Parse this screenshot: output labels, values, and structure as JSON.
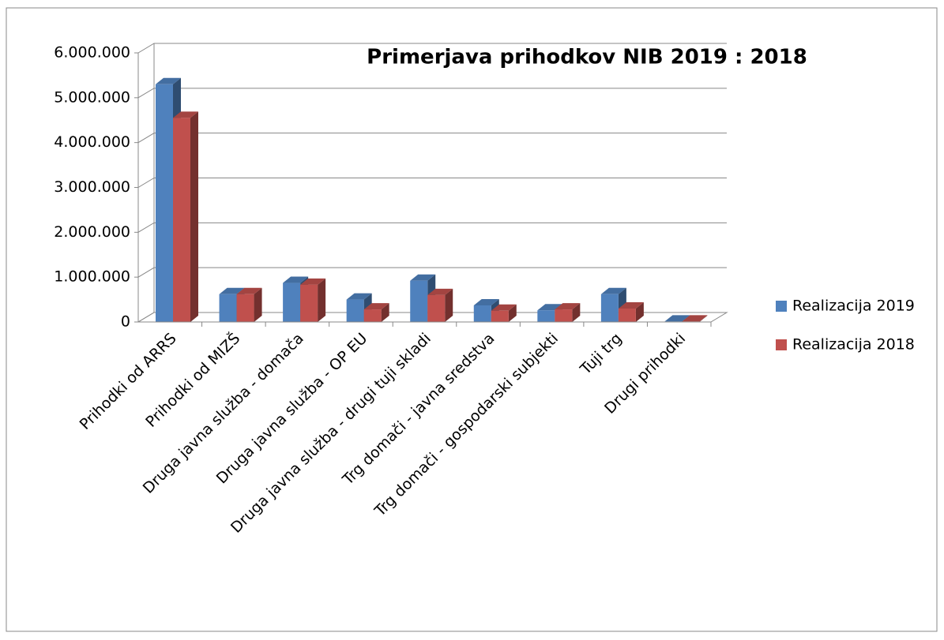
{
  "chart_data": {
    "type": "bar3d",
    "title": "Primerjava prihodkov NIB 2019 : 2018",
    "categories": [
      "Prihodki od ARRS",
      "Prihodki od MIZŠ",
      "Druga javna služba - domača",
      "Druga javna služba - OP EU",
      "Druga javna služba - drugi tuji skladi",
      "Trg domači - javna sredstva",
      "Trg domači - gospodarski subjekti",
      "Tuji trg",
      "Drugi prihodki"
    ],
    "series": [
      {
        "name": "Realizacija 2019",
        "color": "#4f81bd",
        "values": [
          5300000,
          620000,
          870000,
          500000,
          920000,
          370000,
          260000,
          620000,
          10000
        ]
      },
      {
        "name": "Realizacija 2018",
        "color": "#c0504d",
        "values": [
          4550000,
          620000,
          830000,
          280000,
          600000,
          250000,
          280000,
          300000,
          10000
        ]
      }
    ],
    "ylim": [
      0,
      6000000
    ],
    "yticks": [
      0,
      {
        "value": 1000000,
        "label": "1.000.000"
      },
      {
        "value": 2000000,
        "label": "2.000.000"
      },
      {
        "value": 3000000,
        "label": "3.000.000"
      },
      {
        "value": 4000000,
        "label": "4.000.000"
      },
      {
        "value": 5000000,
        "label": "5.000.000"
      },
      {
        "value": 6000000,
        "label": "6.000.000"
      }
    ],
    "grid": true,
    "legend": "right"
  }
}
